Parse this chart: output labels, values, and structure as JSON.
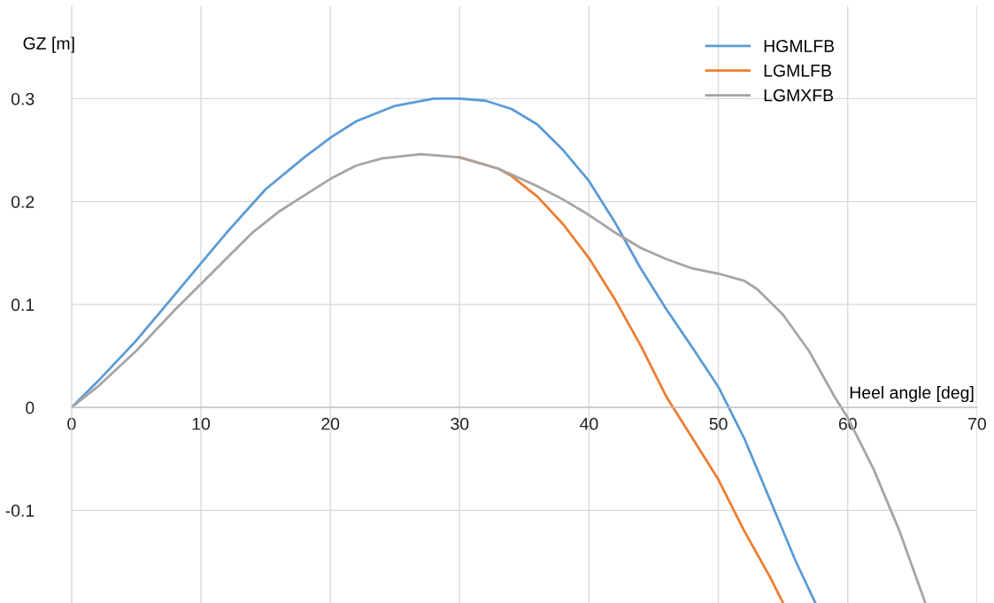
{
  "chart_data": {
    "type": "line",
    "xlabel": "Heel angle [deg]",
    "ylabel": "GZ [m]",
    "xlim": [
      0,
      70
    ],
    "xticks": [
      0,
      10,
      20,
      30,
      40,
      50,
      60,
      70
    ],
    "ylim": [
      -0.19,
      0.39
    ],
    "yticks": [
      -0.1,
      0,
      0.1,
      0.2,
      0.3
    ],
    "grid": true,
    "legend": "top right",
    "marker": "none",
    "line_style": "solid",
    "series": [
      {
        "name": "HGMLFB",
        "color": "#5b9bd5",
        "x": [
          0,
          2,
          5,
          8,
          10,
          12,
          15,
          18,
          20,
          22,
          25,
          28,
          30,
          32,
          34,
          36,
          38,
          40,
          42,
          44,
          46,
          48,
          50,
          52,
          54,
          56,
          57.5
        ],
        "values": [
          0,
          0.025,
          0.065,
          0.11,
          0.14,
          0.17,
          0.212,
          0.243,
          0.262,
          0.278,
          0.293,
          0.3,
          0.3,
          0.298,
          0.29,
          0.275,
          0.25,
          0.22,
          0.18,
          0.135,
          0.095,
          0.058,
          0.02,
          -0.03,
          -0.09,
          -0.15,
          -0.19
        ]
      },
      {
        "name": "LGMLFB",
        "color": "#ed7d31",
        "x": [
          30,
          33,
          34,
          36,
          38,
          40,
          42,
          44,
          46,
          47,
          48,
          50,
          52,
          54,
          55
        ],
        "values": [
          0.243,
          0.232,
          0.225,
          0.205,
          0.178,
          0.145,
          0.105,
          0.06,
          0.01,
          -0.01,
          -0.03,
          -0.07,
          -0.12,
          -0.165,
          -0.19
        ]
      },
      {
        "name": "LGMXFB",
        "color": "#a5a5a5",
        "x": [
          0,
          2,
          5,
          8,
          10,
          12,
          14,
          16,
          18,
          20,
          22,
          24,
          27,
          30,
          33,
          36,
          38,
          40,
          42,
          44,
          46,
          48,
          50,
          52,
          53,
          55,
          57,
          59,
          60,
          62,
          64,
          66
        ],
        "values": [
          0,
          0.02,
          0.055,
          0.095,
          0.12,
          0.145,
          0.17,
          0.19,
          0.206,
          0.222,
          0.235,
          0.242,
          0.246,
          0.243,
          0.232,
          0.215,
          0.202,
          0.187,
          0.17,
          0.155,
          0.144,
          0.135,
          0.13,
          0.123,
          0.115,
          0.09,
          0.055,
          0.01,
          -0.01,
          -0.06,
          -0.12,
          -0.19
        ]
      }
    ]
  }
}
